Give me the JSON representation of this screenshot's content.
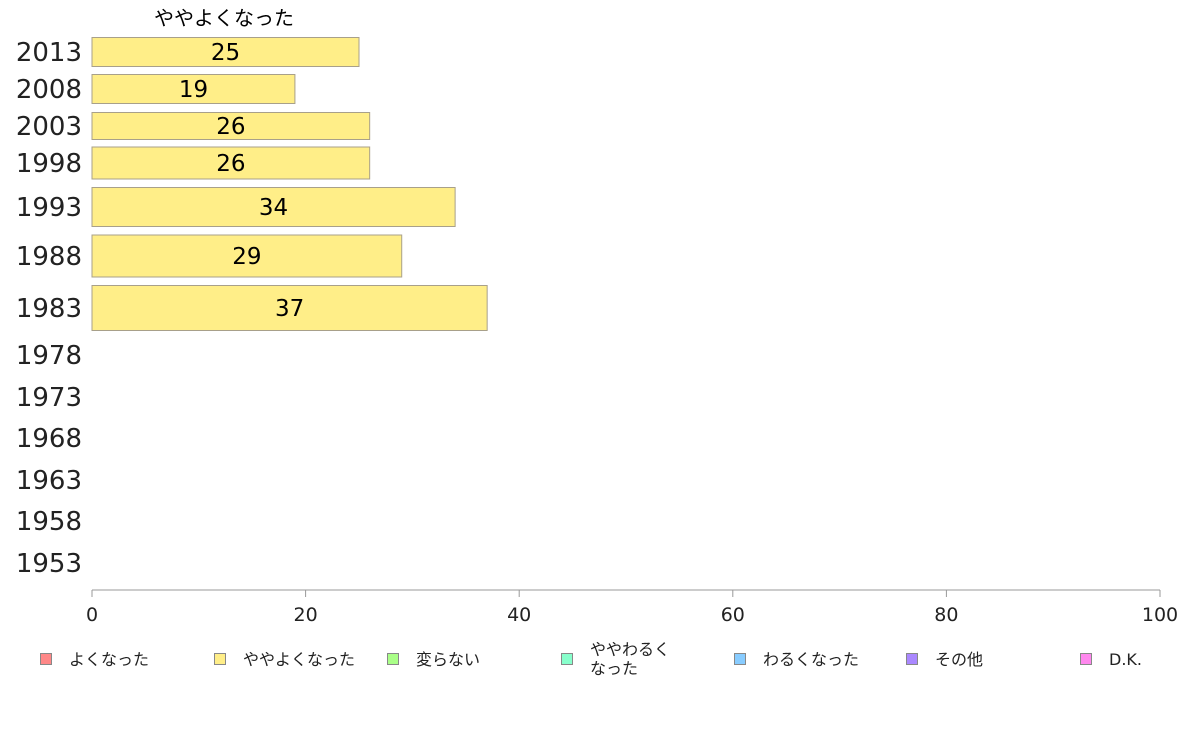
{
  "chart_data": {
    "type": "bar",
    "orientation": "horizontal",
    "categories": [
      "2013",
      "2008",
      "2003",
      "1998",
      "1993",
      "1988",
      "1983",
      "1978",
      "1973",
      "1968",
      "1963",
      "1958",
      "1953"
    ],
    "series": [
      {
        "name": "ややよくなった",
        "color": "#ffee88",
        "values": [
          25,
          19,
          26,
          26,
          34,
          29,
          37,
          null,
          null,
          null,
          null,
          null,
          null
        ]
      }
    ],
    "xlim": [
      0,
      100
    ],
    "xticks": [
      0,
      20,
      40,
      60,
      80,
      100
    ],
    "grid": false,
    "legend_position": "bottom"
  },
  "legend": [
    {
      "label": "よくなった",
      "color": "#ff8888"
    },
    {
      "label": "ややよくなった",
      "color": "#ffee88"
    },
    {
      "label": "変らない",
      "color": "#aaff88"
    },
    {
      "label": "ややわるく\nなった",
      "color": "#88ffcc"
    },
    {
      "label": "わるくなった",
      "color": "#88ccff"
    },
    {
      "label": "その他",
      "color": "#aa88ff"
    },
    {
      "label": "D.K.",
      "color": "#ff88ee"
    }
  ]
}
